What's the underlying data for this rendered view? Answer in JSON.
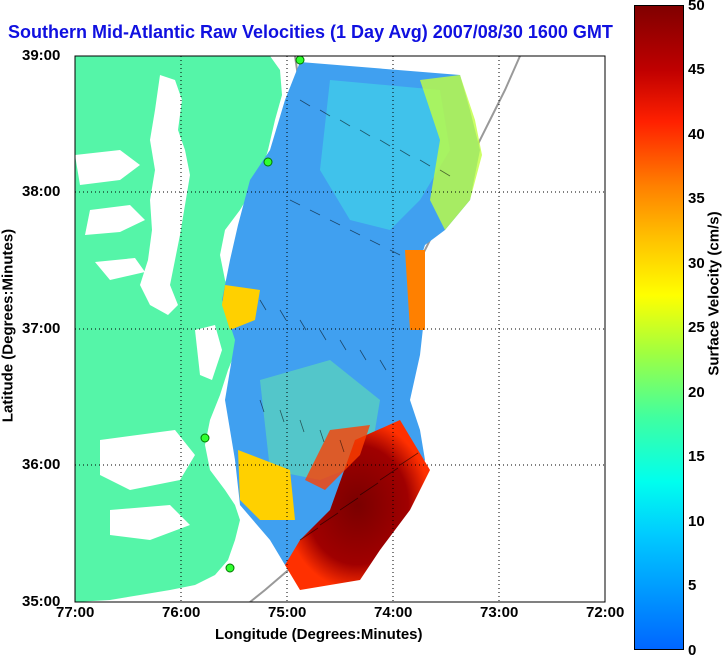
{
  "title": "Southern Mid-Atlantic Raw Velocities (1 Day Avg) 2007/08/30 1600 GMT",
  "xaxis": {
    "label": "Longitude (Degrees:Minutes)",
    "ticks": [
      "77:00",
      "76:00",
      "75:00",
      "74:00",
      "73:00",
      "72:00"
    ]
  },
  "yaxis": {
    "label": "Latitude (Degrees:Minutes)",
    "ticks": [
      "39:00",
      "38:00",
      "37:00",
      "36:00",
      "35:00"
    ]
  },
  "colorbar": {
    "label": "Surface Velocity (cm/s)",
    "ticks": [
      "50",
      "45",
      "40",
      "35",
      "30",
      "25",
      "20",
      "15",
      "10",
      "5",
      "0"
    ],
    "range": [
      0,
      50
    ]
  },
  "colors": {
    "land": "#55f5a8",
    "title": "#1010e0"
  }
}
